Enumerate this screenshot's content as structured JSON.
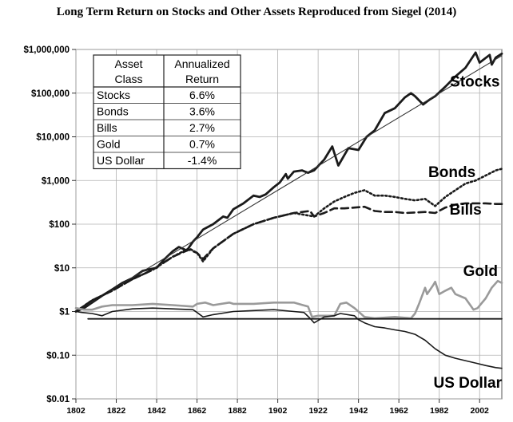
{
  "chart_data": {
    "type": "line",
    "title": "Long Term Return on Stocks and Other Assets Reproduced from Siegel (2014)",
    "y_scale": "log",
    "ylim": [
      0.01,
      1000000
    ],
    "xlim": [
      1802,
      2013
    ],
    "y_ticks": [
      {
        "value": 1000000,
        "label": "$1,000,000"
      },
      {
        "value": 100000,
        "label": "$100,000"
      },
      {
        "value": 10000,
        "label": "$10,000"
      },
      {
        "value": 1000,
        "label": "$1,000"
      },
      {
        "value": 100,
        "label": "$100"
      },
      {
        "value": 10,
        "label": "$10"
      },
      {
        "value": 1,
        "label": "$1"
      },
      {
        "value": 0.1,
        "label": "$0.10"
      },
      {
        "value": 0.01,
        "label": "$0.01"
      }
    ],
    "x_ticks": [
      {
        "value": 1802,
        "label": "1802"
      },
      {
        "value": 1822,
        "label": "1822"
      },
      {
        "value": 1842,
        "label": "1842"
      },
      {
        "value": 1862,
        "label": "1862"
      },
      {
        "value": 1882,
        "label": "1882"
      },
      {
        "value": 1902,
        "label": "1902"
      },
      {
        "value": 1922,
        "label": "1922"
      },
      {
        "value": 1942,
        "label": "1942"
      },
      {
        "value": 1962,
        "label": "1962"
      },
      {
        "value": 1982,
        "label": "1982"
      },
      {
        "value": 2002,
        "label": "2002"
      }
    ],
    "series": [
      {
        "name": "Stocks",
        "label": "Stocks",
        "label_at": [
          2012,
          140000
        ],
        "label_anchor": "end",
        "color": "#1a1a1a",
        "width": 2.8,
        "dash": "",
        "points": [
          [
            1802,
            1
          ],
          [
            1806,
            1.2
          ],
          [
            1810,
            1.6
          ],
          [
            1815,
            2.3
          ],
          [
            1820,
            3.2
          ],
          [
            1825,
            4.5
          ],
          [
            1830,
            5.8
          ],
          [
            1835,
            8.5
          ],
          [
            1838,
            9.2
          ],
          [
            1842,
            10
          ],
          [
            1846,
            16
          ],
          [
            1850,
            24
          ],
          [
            1853,
            30
          ],
          [
            1857,
            25
          ],
          [
            1860,
            40
          ],
          [
            1862,
            50
          ],
          [
            1865,
            75
          ],
          [
            1870,
            100
          ],
          [
            1875,
            150
          ],
          [
            1877,
            140
          ],
          [
            1880,
            220
          ],
          [
            1885,
            300
          ],
          [
            1890,
            450
          ],
          [
            1893,
            420
          ],
          [
            1896,
            480
          ],
          [
            1900,
            700
          ],
          [
            1903,
            900
          ],
          [
            1906,
            1400
          ],
          [
            1907,
            1100
          ],
          [
            1910,
            1600
          ],
          [
            1914,
            1700
          ],
          [
            1917,
            1500
          ],
          [
            1920,
            1700
          ],
          [
            1925,
            3000
          ],
          [
            1929,
            6000
          ],
          [
            1932,
            2200
          ],
          [
            1937,
            5500
          ],
          [
            1942,
            5000
          ],
          [
            1946,
            10000
          ],
          [
            1950,
            14000
          ],
          [
            1955,
            35000
          ],
          [
            1960,
            45000
          ],
          [
            1965,
            80000
          ],
          [
            1968,
            100000
          ],
          [
            1970,
            85000
          ],
          [
            1974,
            55000
          ],
          [
            1977,
            70000
          ],
          [
            1980,
            85000
          ],
          [
            1985,
            140000
          ],
          [
            1990,
            240000
          ],
          [
            1995,
            380000
          ],
          [
            2000,
            850000
          ],
          [
            2002,
            500000
          ],
          [
            2007,
            750000
          ],
          [
            2008,
            450000
          ],
          [
            2010,
            650000
          ],
          [
            2013,
            800000
          ]
        ]
      },
      {
        "name": "Trend",
        "label": "",
        "color": "#333333",
        "width": 1.1,
        "dash": "",
        "points": [
          [
            1802,
            1
          ],
          [
            2013,
            720000
          ]
        ]
      },
      {
        "name": "Bonds",
        "label": "Bonds",
        "label_at": [
          2000,
          1200
        ],
        "label_anchor": "end",
        "color": "#1a1a1a",
        "width": 2.6,
        "dash": "2,3",
        "points": [
          [
            1802,
            1
          ],
          [
            1810,
            1.8
          ],
          [
            1820,
            3
          ],
          [
            1830,
            5.5
          ],
          [
            1840,
            9
          ],
          [
            1850,
            18
          ],
          [
            1858,
            28
          ],
          [
            1862,
            22
          ],
          [
            1865,
            14
          ],
          [
            1870,
            28
          ],
          [
            1880,
            60
          ],
          [
            1890,
            100
          ],
          [
            1900,
            140
          ],
          [
            1910,
            180
          ],
          [
            1920,
            150
          ],
          [
            1925,
            230
          ],
          [
            1930,
            330
          ],
          [
            1935,
            420
          ],
          [
            1940,
            520
          ],
          [
            1945,
            600
          ],
          [
            1950,
            450
          ],
          [
            1955,
            450
          ],
          [
            1960,
            420
          ],
          [
            1965,
            380
          ],
          [
            1970,
            350
          ],
          [
            1975,
            380
          ],
          [
            1980,
            260
          ],
          [
            1985,
            420
          ],
          [
            1990,
            600
          ],
          [
            1995,
            850
          ],
          [
            2000,
            1000
          ],
          [
            2005,
            1300
          ],
          [
            2010,
            1700
          ],
          [
            2013,
            1850
          ]
        ]
      },
      {
        "name": "Bills",
        "label": "Bills",
        "label_at": [
          2003,
          165
        ],
        "label_anchor": "end",
        "color": "#1a1a1a",
        "width": 2.6,
        "dash": "9,5",
        "points": [
          [
            1802,
            1
          ],
          [
            1810,
            1.8
          ],
          [
            1820,
            3
          ],
          [
            1830,
            5.5
          ],
          [
            1840,
            9
          ],
          [
            1850,
            18
          ],
          [
            1858,
            26
          ],
          [
            1862,
            22
          ],
          [
            1865,
            16
          ],
          [
            1870,
            28
          ],
          [
            1880,
            60
          ],
          [
            1890,
            100
          ],
          [
            1900,
            140
          ],
          [
            1910,
            180
          ],
          [
            1918,
            200
          ],
          [
            1920,
            150
          ],
          [
            1925,
            180
          ],
          [
            1930,
            230
          ],
          [
            1935,
            230
          ],
          [
            1940,
            240
          ],
          [
            1945,
            250
          ],
          [
            1950,
            200
          ],
          [
            1955,
            190
          ],
          [
            1960,
            190
          ],
          [
            1965,
            180
          ],
          [
            1970,
            185
          ],
          [
            1975,
            190
          ],
          [
            1980,
            180
          ],
          [
            1985,
            240
          ],
          [
            1990,
            280
          ],
          [
            1995,
            300
          ],
          [
            2000,
            300
          ],
          [
            2005,
            300
          ],
          [
            2010,
            290
          ],
          [
            2013,
            290
          ]
        ]
      },
      {
        "name": "Gold",
        "label": "Gold",
        "label_at": [
          2011,
          6.5
        ],
        "label_anchor": "end",
        "color": "#9a9a9a",
        "width": 2.6,
        "dash": "",
        "points": [
          [
            1802,
            1.2
          ],
          [
            1806,
            1.1
          ],
          [
            1810,
            1.1
          ],
          [
            1815,
            1.3
          ],
          [
            1820,
            1.4
          ],
          [
            1830,
            1.4
          ],
          [
            1840,
            1.5
          ],
          [
            1850,
            1.4
          ],
          [
            1860,
            1.3
          ],
          [
            1862,
            1.5
          ],
          [
            1866,
            1.6
          ],
          [
            1870,
            1.4
          ],
          [
            1878,
            1.6
          ],
          [
            1880,
            1.5
          ],
          [
            1890,
            1.5
          ],
          [
            1900,
            1.6
          ],
          [
            1910,
            1.6
          ],
          [
            1917,
            1.3
          ],
          [
            1919,
            0.75
          ],
          [
            1922,
            0.8
          ],
          [
            1930,
            0.8
          ],
          [
            1933,
            1.5
          ],
          [
            1936,
            1.6
          ],
          [
            1940,
            1.2
          ],
          [
            1945,
            0.75
          ],
          [
            1950,
            0.7
          ],
          [
            1960,
            0.75
          ],
          [
            1968,
            0.7
          ],
          [
            1970,
            0.9
          ],
          [
            1972,
            1.5
          ],
          [
            1975,
            3.5
          ],
          [
            1976,
            2.5
          ],
          [
            1979,
            4
          ],
          [
            1980,
            4.8
          ],
          [
            1982,
            2.5
          ],
          [
            1985,
            3
          ],
          [
            1988,
            3.5
          ],
          [
            1990,
            2.5
          ],
          [
            1995,
            2
          ],
          [
            1999,
            1.1
          ],
          [
            2001,
            1.2
          ],
          [
            2005,
            2
          ],
          [
            2008,
            3.5
          ],
          [
            2011,
            5
          ],
          [
            2013,
            4.5
          ]
        ]
      },
      {
        "name": "US Dollar",
        "label": "US Dollar",
        "label_at": [
          2013,
          0.018
        ],
        "label_anchor": "end",
        "color": "#1a1a1a",
        "width": 1.6,
        "dash": "",
        "points": [
          [
            1802,
            1
          ],
          [
            1805,
            0.95
          ],
          [
            1810,
            0.9
          ],
          [
            1815,
            0.8
          ],
          [
            1820,
            1
          ],
          [
            1830,
            1.15
          ],
          [
            1840,
            1.2
          ],
          [
            1850,
            1.15
          ],
          [
            1860,
            1.1
          ],
          [
            1862,
            0.95
          ],
          [
            1865,
            0.75
          ],
          [
            1870,
            0.85
          ],
          [
            1880,
            1
          ],
          [
            1890,
            1.05
          ],
          [
            1900,
            1.1
          ],
          [
            1910,
            1
          ],
          [
            1915,
            0.95
          ],
          [
            1918,
            0.7
          ],
          [
            1920,
            0.55
          ],
          [
            1925,
            0.75
          ],
          [
            1930,
            0.8
          ],
          [
            1933,
            0.9
          ],
          [
            1940,
            0.8
          ],
          [
            1942,
            0.65
          ],
          [
            1945,
            0.55
          ],
          [
            1950,
            0.45
          ],
          [
            1955,
            0.42
          ],
          [
            1960,
            0.38
          ],
          [
            1965,
            0.35
          ],
          [
            1970,
            0.3
          ],
          [
            1975,
            0.22
          ],
          [
            1980,
            0.14
          ],
          [
            1985,
            0.1
          ],
          [
            1990,
            0.085
          ],
          [
            1995,
            0.075
          ],
          [
            2000,
            0.066
          ],
          [
            2005,
            0.058
          ],
          [
            2010,
            0.052
          ],
          [
            2013,
            0.05
          ]
        ]
      },
      {
        "name": "Baseline",
        "label": "",
        "color": "#1a1a1a",
        "width": 1.8,
        "dash": "",
        "points": [
          [
            1808,
            0.68
          ],
          [
            2013,
            0.68
          ]
        ]
      }
    ],
    "inset_table": {
      "headers": [
        [
          "Asset",
          "Class"
        ],
        [
          "Annualized",
          "Return"
        ]
      ],
      "rows": [
        [
          "Stocks",
          "6.6%"
        ],
        [
          "Bonds",
          "3.6%"
        ],
        [
          "Bills",
          "2.7%"
        ],
        [
          "Gold",
          "0.7%"
        ],
        [
          "US Dollar",
          "-1.4%"
        ]
      ]
    }
  }
}
